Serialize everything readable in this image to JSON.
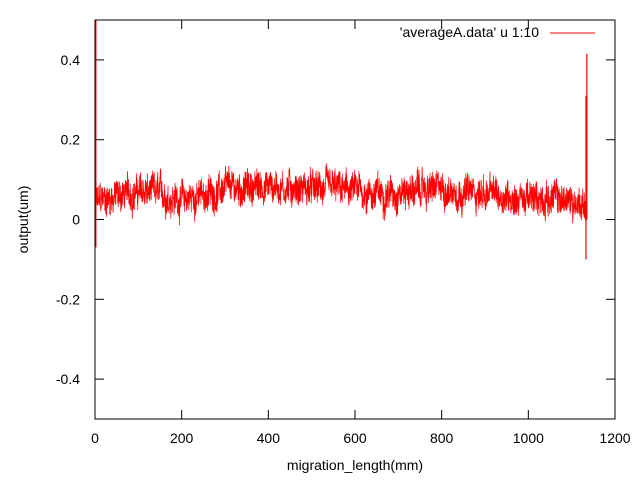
{
  "chart_data": {
    "type": "line",
    "title": "",
    "xlabel": "migration_length(mm)",
    "ylabel": "output(um)",
    "xlim": [
      0,
      1200
    ],
    "ylim": [
      -0.5,
      0.5
    ],
    "x_ticks": [
      0,
      200,
      400,
      600,
      800,
      1000,
      1200
    ],
    "y_ticks": [
      -0.4,
      -0.2,
      0,
      0.2,
      0.4
    ],
    "x_tick_labels": [
      "0",
      "200",
      "400",
      "600",
      "800",
      "1000",
      "1200"
    ],
    "y_tick_labels": [
      "-0.4",
      "-0.2",
      "0",
      "0.2",
      "0.4"
    ],
    "grid": false,
    "legend_position": "top-right",
    "series": [
      {
        "name": "'averageA.data' u 1:10",
        "color": "#ff0000",
        "x_range": [
          0,
          1135
        ],
        "trend_x": [
          0,
          20,
          50,
          100,
          150,
          200,
          250,
          300,
          350,
          400,
          450,
          500,
          550,
          600,
          650,
          700,
          750,
          800,
          850,
          900,
          950,
          1000,
          1050,
          1100,
          1130
        ],
        "trend_y": [
          0.04,
          0.05,
          0.06,
          0.07,
          0.065,
          0.05,
          0.06,
          0.075,
          0.08,
          0.085,
          0.08,
          0.075,
          0.075,
          0.07,
          0.065,
          0.07,
          0.075,
          0.075,
          0.07,
          0.065,
          0.06,
          0.05,
          0.055,
          0.045,
          0.04
        ],
        "noise_amplitude": 0.035,
        "spikes": [
          {
            "x": 2,
            "y_min": -0.07,
            "y_max": 0.5
          },
          {
            "x": 1133,
            "y_min": -0.1,
            "y_max": 0.31
          },
          {
            "x": 1135,
            "y_min": 0.0,
            "y_max": 0.415
          }
        ]
      }
    ]
  }
}
